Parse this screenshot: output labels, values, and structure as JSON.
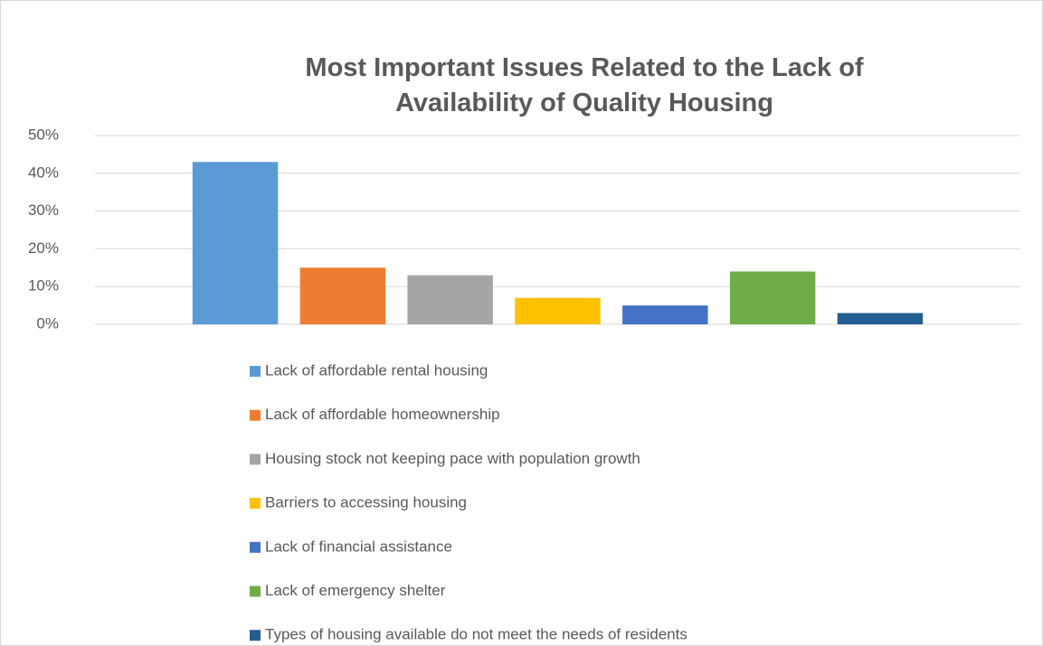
{
  "chart_data": {
    "type": "bar",
    "title": "Most Important Issues Related to the Lack of Availability of Quality Housing",
    "categories": [
      null
    ],
    "series": [
      {
        "name": "Lack of affordable rental housing",
        "color": "#5b9bd5",
        "values": [
          43
        ]
      },
      {
        "name": "Lack of affordable homeownership",
        "color": "#ed7d31",
        "values": [
          15
        ]
      },
      {
        "name": "Housing stock not keeping pace with population growth",
        "color": "#a5a5a5",
        "values": [
          13
        ]
      },
      {
        "name": "Barriers to accessing housing",
        "color": "#ffc000",
        "values": [
          7
        ]
      },
      {
        "name": "Lack of financial assistance",
        "color": "#4472c4",
        "values": [
          5
        ]
      },
      {
        "name": "Lack of emergency shelter",
        "color": "#70ad47",
        "values": [
          14
        ]
      },
      {
        "name": "Types of housing available do not meet the needs of residents",
        "color": "#255e91",
        "values": [
          3
        ]
      }
    ],
    "ylim": [
      0,
      50
    ],
    "yticks": [
      {
        "value": 0,
        "label": "0%"
      },
      {
        "value": 10,
        "label": "10%"
      },
      {
        "value": 20,
        "label": "20%"
      },
      {
        "value": 30,
        "label": "30%"
      },
      {
        "value": 40,
        "label": "40%"
      },
      {
        "value": 50,
        "label": "50%"
      }
    ],
    "grid": true,
    "legend": "bottom"
  }
}
